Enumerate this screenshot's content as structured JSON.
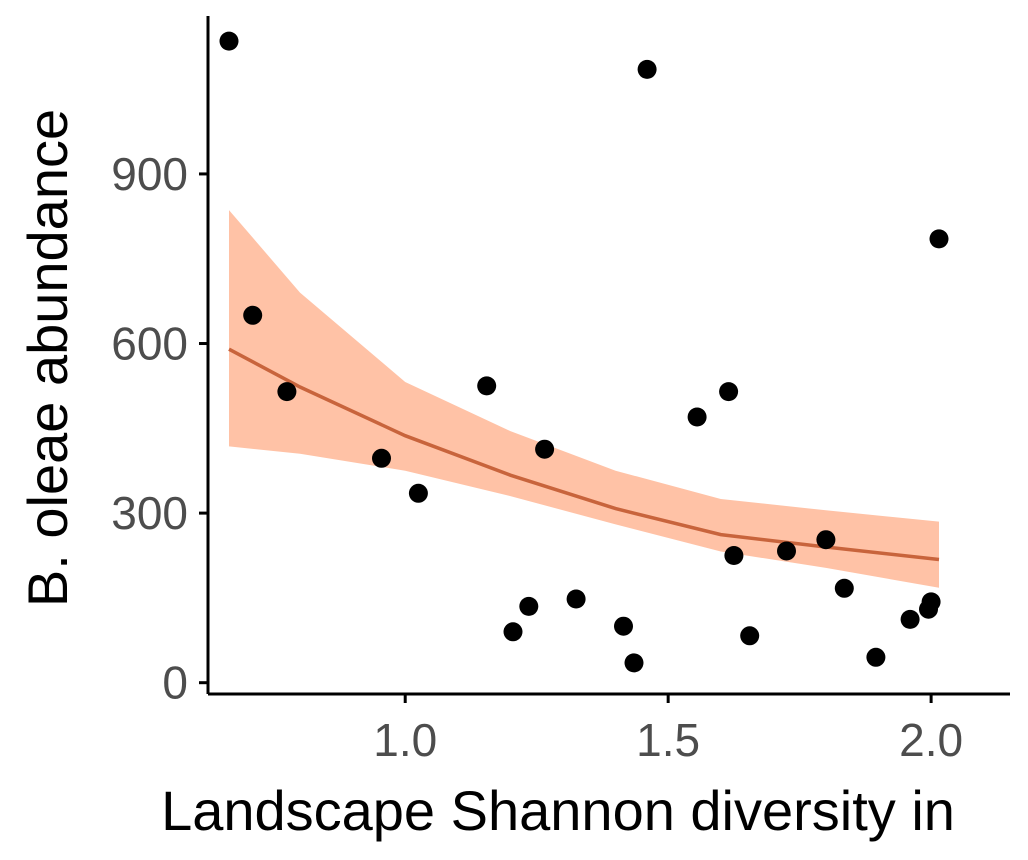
{
  "chart_data": {
    "type": "scatter",
    "xlabel": "Landscape Shannon diversity in",
    "ylabel": "B. oleae abundance",
    "xlim": [
      0.625,
      2.15
    ],
    "ylim": [
      -20,
      1190
    ],
    "x_ticks": [
      1.0,
      1.5,
      2.0
    ],
    "x_tick_labels": [
      "1.0",
      "1.5",
      "2.0"
    ],
    "y_ticks": [
      0,
      300,
      600,
      900
    ],
    "y_tick_labels": [
      "0",
      "300",
      "600",
      "900"
    ],
    "grid": false,
    "legend": "none",
    "series": [
      {
        "type": "scatter",
        "color": "#000000",
        "points": [
          {
            "x": 0.665,
            "y": 1135
          },
          {
            "x": 0.71,
            "y": 650
          },
          {
            "x": 0.775,
            "y": 515
          },
          {
            "x": 0.955,
            "y": 397
          },
          {
            "x": 1.025,
            "y": 335
          },
          {
            "x": 1.155,
            "y": 525
          },
          {
            "x": 1.205,
            "y": 90
          },
          {
            "x": 1.235,
            "y": 135
          },
          {
            "x": 1.265,
            "y": 413
          },
          {
            "x": 1.325,
            "y": 148
          },
          {
            "x": 1.415,
            "y": 100
          },
          {
            "x": 1.435,
            "y": 35
          },
          {
            "x": 1.46,
            "y": 1085
          },
          {
            "x": 1.555,
            "y": 470
          },
          {
            "x": 1.615,
            "y": 515
          },
          {
            "x": 1.625,
            "y": 225
          },
          {
            "x": 1.655,
            "y": 83
          },
          {
            "x": 1.725,
            "y": 233
          },
          {
            "x": 1.8,
            "y": 253
          },
          {
            "x": 1.835,
            "y": 167
          },
          {
            "x": 1.895,
            "y": 45
          },
          {
            "x": 1.96,
            "y": 112
          },
          {
            "x": 1.995,
            "y": 130
          },
          {
            "x": 2.0,
            "y": 143
          },
          {
            "x": 2.015,
            "y": 785
          }
        ]
      },
      {
        "type": "line",
        "color": "#c8643c",
        "x": [
          0.665,
          0.8,
          1.0,
          1.2,
          1.4,
          1.6,
          1.8,
          2.015
        ],
        "y": [
          590,
          523,
          437,
          367,
          308,
          262,
          240,
          218
        ]
      },
      {
        "type": "band",
        "color": "#ffc2a6",
        "x": [
          0.665,
          0.8,
          1.0,
          1.2,
          1.4,
          1.6,
          1.8,
          2.015
        ],
        "lower": [
          418,
          405,
          375,
          330,
          280,
          232,
          203,
          168
        ],
        "upper": [
          836,
          690,
          532,
          445,
          375,
          325,
          305,
          285
        ]
      }
    ]
  }
}
